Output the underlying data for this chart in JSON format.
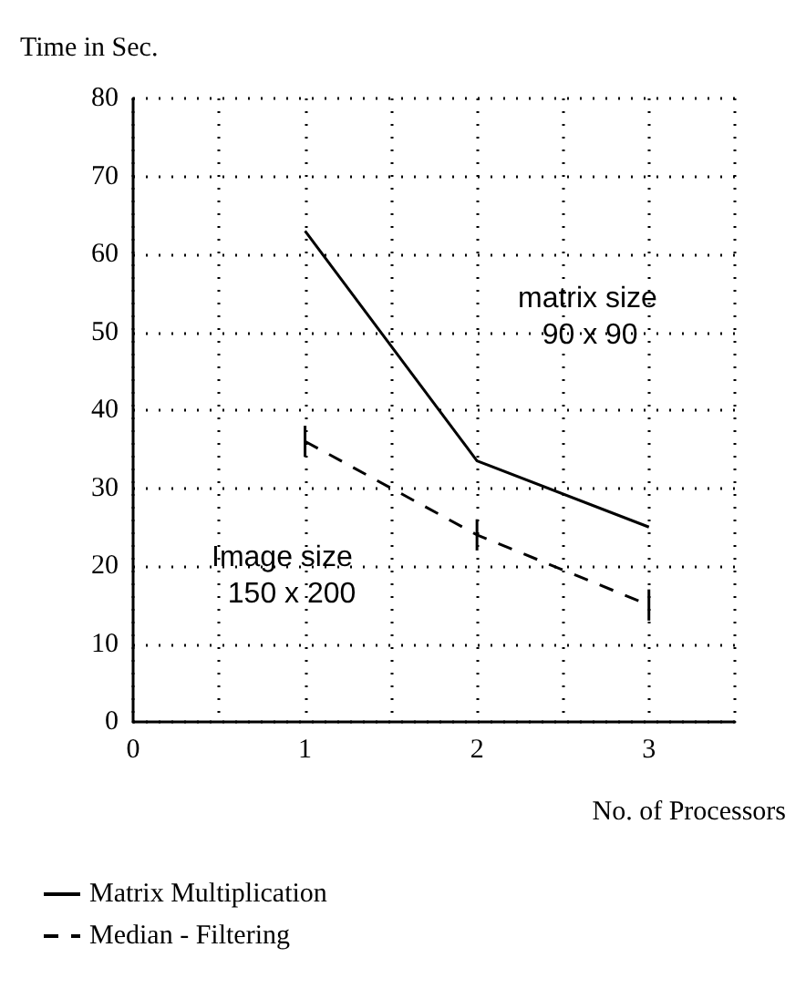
{
  "chart_data": {
    "type": "line",
    "ylabel": "Time in Sec.",
    "xlabel": "No. of Processors",
    "x": [
      1,
      2,
      3
    ],
    "series": [
      {
        "name": "Matrix Multiplication",
        "color": "#000000",
        "values": [
          63,
          33.5,
          25
        ],
        "line_style": "solid"
      },
      {
        "name": "Median - Filtering",
        "color": "#000000",
        "values": [
          36,
          24,
          15
        ],
        "errors": [
          2,
          2,
          2
        ],
        "line_style": "dashed"
      }
    ],
    "xlim": [
      0,
      3.5
    ],
    "xticks": [
      0,
      {
        "value": 0.5,
        "label": null
      },
      1,
      {
        "value": 1.5,
        "label": null
      },
      2,
      {
        "value": 2.5,
        "label": null
      },
      3,
      {
        "value": 3.5,
        "label": null
      }
    ],
    "ylim": [
      0,
      80
    ],
    "yticks": [
      0,
      10,
      20,
      30,
      40,
      50,
      60,
      70,
      80
    ],
    "grid": true,
    "legend": "bottom left",
    "marker": "none",
    "annotations": [
      "matrix size\n   90 x 90",
      "Image size\n  150 x 200"
    ]
  }
}
